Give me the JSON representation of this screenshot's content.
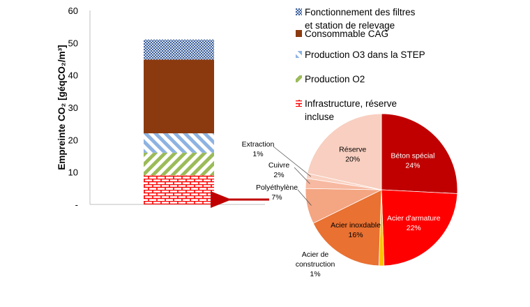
{
  "chart_data": [
    {
      "type": "bar",
      "stacked": true,
      "ylabel": "Empreinte CO₂ [géqCO₂/m³]",
      "ylim": [
        0,
        60
      ],
      "yticks": [
        "-",
        "10",
        "20",
        "30",
        "40",
        "50",
        "60"
      ],
      "grid": false,
      "legend_position": "right",
      "series": [
        {
          "name": "Infrastructure, réserve incluse",
          "value": 9,
          "color": "#ff0000",
          "pattern": "brick"
        },
        {
          "name": "Production O2",
          "value": 7,
          "color": "#9bbb59",
          "pattern": "diag-down"
        },
        {
          "name": "Production O3 dans la STEP",
          "value": 6,
          "color": "#8db3e2",
          "pattern": "diag-up"
        },
        {
          "name": "Consommable CAG",
          "value": 22.8,
          "color": "#8b3a0f",
          "pattern": "solid"
        },
        {
          "name": "Fonctionnement des filtres et station de relevage",
          "value": 6.2,
          "color": "#4f6fa8",
          "pattern": "dots"
        }
      ],
      "legend_lines": [
        [
          "Fonctionnement des filtres",
          "et station de relevage"
        ],
        [
          "Consommable CAG"
        ],
        [
          "Production O3 dans la STEP"
        ],
        [
          "Production O2"
        ],
        [
          "Infrastructure, réserve",
          "incluse"
        ]
      ]
    },
    {
      "type": "pie",
      "slices": [
        {
          "name": "Béton spécial",
          "value": 24,
          "label": "24%",
          "color": "#c00000",
          "label_color": "#ffffff"
        },
        {
          "name": "Acier d'armature",
          "value": 22,
          "label": "22%",
          "color": "#ff0000",
          "label_color": "#ffffff"
        },
        {
          "name": "Acier de construction",
          "value": 1,
          "label": "1%",
          "color": "#ffc000",
          "label_color": "#000000"
        },
        {
          "name": "Acier inoxdable",
          "value": 16,
          "label": "16%",
          "color": "#e97132",
          "label_color": "#000000"
        },
        {
          "name": "Polyéthylène",
          "value": 7,
          "label": "7%",
          "color": "#f4a582",
          "label_color": "#000000"
        },
        {
          "name": "Cuivre",
          "value": 2,
          "label": "2%",
          "color": "#f7b9a1",
          "label_color": "#000000"
        },
        {
          "name": "Extraction",
          "value": 1,
          "label": "1%",
          "color": "#fad1c1",
          "label_color": "#000000"
        },
        {
          "name": "Réserve",
          "value": 20,
          "label": "20%",
          "color": "#f8cfc0",
          "label_color": "#000000"
        }
      ]
    }
  ]
}
